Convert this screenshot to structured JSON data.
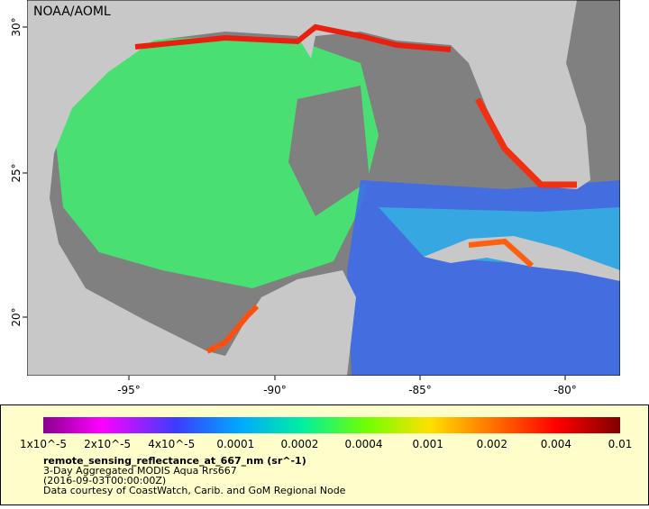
{
  "map": {
    "credit": "NOAA/AOML",
    "lat_labels": [
      "30°",
      "25°",
      "20°"
    ],
    "lon_labels": [
      "-95°",
      "-90°",
      "-85°",
      "-80°"
    ]
  },
  "legend": {
    "colorbar_labels": [
      "1x10^-5",
      "2x10^-5",
      "4x10^-5",
      "0.0001",
      "0.0002",
      "0.0004",
      "0.001",
      "0.002",
      "0.004",
      "0.01"
    ],
    "title": "remote_sensing_reflectance_at_667_nm (sr^-1)",
    "lines": [
      "3-Day Aggregated MODIS Aqua Rrs667",
      "(2016-09-03T00:00:00Z)",
      "Data courtesy of CoastWatch, Carib. and GoM Regional Node"
    ]
  }
}
